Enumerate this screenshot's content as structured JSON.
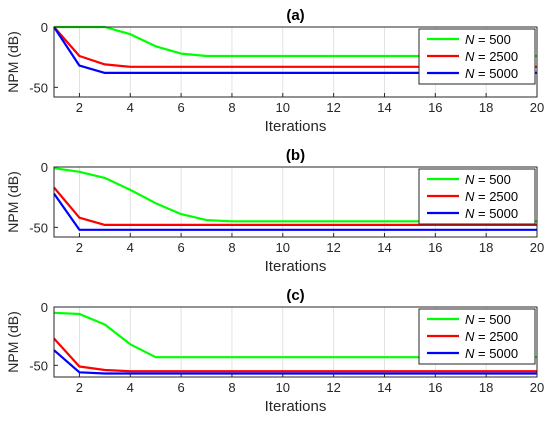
{
  "figure": {
    "colors": {
      "green": "#00ff00",
      "red": "#ff0000",
      "blue": "#0000ff"
    }
  },
  "chart_data": [
    {
      "type": "line",
      "title": "(a)",
      "xlabel": "Iterations",
      "ylabel": "NPM (dB)",
      "xlim": [
        1,
        20
      ],
      "ylim": [
        -58,
        0
      ],
      "xticks": [
        2,
        4,
        6,
        8,
        10,
        12,
        14,
        16,
        18,
        20
      ],
      "yticks": [
        0,
        -50
      ],
      "grid": "x",
      "legend": "top-right",
      "x": [
        1,
        2,
        3,
        4,
        5,
        6,
        7,
        8,
        9,
        10,
        11,
        12,
        13,
        14,
        15,
        16,
        17,
        18,
        19,
        20
      ],
      "series": [
        {
          "name_prefix": "N",
          "name_suffix": " = 500",
          "color": "#00ff00",
          "values": [
            0,
            0,
            0,
            -6,
            -16,
            -22,
            -24,
            -24,
            -24,
            -24,
            -24,
            -24,
            -24,
            -24,
            -24,
            -24,
            -24,
            -24,
            -24,
            -24
          ]
        },
        {
          "name_prefix": "N",
          "name_suffix": " = 2500",
          "color": "#ff0000",
          "values": [
            0,
            -24,
            -31,
            -33,
            -33,
            -33,
            -33,
            -33,
            -33,
            -33,
            -33,
            -33,
            -33,
            -33,
            -33,
            -33,
            -33,
            -33,
            -33,
            -33
          ]
        },
        {
          "name_prefix": "N",
          "name_suffix": " = 5000",
          "color": "#0000ff",
          "values": [
            0,
            -32,
            -38,
            -38,
            -38,
            -38,
            -38,
            -38,
            -38,
            -38,
            -38,
            -38,
            -38,
            -38,
            -38,
            -38,
            -38,
            -38,
            -38,
            -38
          ]
        }
      ]
    },
    {
      "type": "line",
      "title": "(b)",
      "xlabel": "Iterations",
      "ylabel": "NPM (dB)",
      "xlim": [
        1,
        20
      ],
      "ylim": [
        -58,
        0
      ],
      "xticks": [
        2,
        4,
        6,
        8,
        10,
        12,
        14,
        16,
        18,
        20
      ],
      "yticks": [
        0,
        -50
      ],
      "grid": "x",
      "legend": "top-right",
      "x": [
        1,
        2,
        3,
        4,
        5,
        6,
        7,
        8,
        9,
        10,
        11,
        12,
        13,
        14,
        15,
        16,
        17,
        18,
        19,
        20
      ],
      "series": [
        {
          "name_prefix": "N",
          "name_suffix": " = 500",
          "color": "#00ff00",
          "values": [
            -1,
            -4,
            -9,
            -19,
            -30,
            -39,
            -44,
            -45,
            -45,
            -45,
            -45,
            -45,
            -45,
            -45,
            -45,
            -45,
            -45,
            -45,
            -45,
            -45
          ]
        },
        {
          "name_prefix": "N",
          "name_suffix": " = 2500",
          "color": "#ff0000",
          "values": [
            -17,
            -42,
            -48,
            -48,
            -48,
            -48,
            -48,
            -48,
            -48,
            -48,
            -48,
            -48,
            -48,
            -48,
            -48,
            -48,
            -48,
            -48,
            -48,
            -48
          ]
        },
        {
          "name_prefix": "N",
          "name_suffix": " = 5000",
          "color": "#0000ff",
          "values": [
            -22,
            -52,
            -52,
            -52,
            -52,
            -52,
            -52,
            -52,
            -52,
            -52,
            -52,
            -52,
            -52,
            -52,
            -52,
            -52,
            -52,
            -52,
            -52,
            -52
          ]
        }
      ]
    },
    {
      "type": "line",
      "title": "(c)",
      "xlabel": "Iterations",
      "ylabel": "NPM (dB)",
      "xlim": [
        1,
        20
      ],
      "ylim": [
        -60,
        0
      ],
      "xticks": [
        2,
        4,
        6,
        8,
        10,
        12,
        14,
        16,
        18,
        20
      ],
      "yticks": [
        0,
        -50
      ],
      "grid": "x",
      "legend": "top-right",
      "x": [
        1,
        2,
        3,
        4,
        5,
        6,
        7,
        8,
        9,
        10,
        11,
        12,
        13,
        14,
        15,
        16,
        17,
        18,
        19,
        20
      ],
      "series": [
        {
          "name_prefix": "N",
          "name_suffix": " = 500",
          "color": "#00ff00",
          "values": [
            -5,
            -6,
            -15,
            -32,
            -43,
            -43,
            -43,
            -43,
            -43,
            -43,
            -43,
            -43,
            -43,
            -43,
            -43,
            -43,
            -43,
            -43,
            -43,
            -43
          ]
        },
        {
          "name_prefix": "N",
          "name_suffix": " = 2500",
          "color": "#ff0000",
          "values": [
            -27,
            -51,
            -54,
            -55,
            -55,
            -55,
            -55,
            -55,
            -55,
            -55,
            -55,
            -55,
            -55,
            -55,
            -55,
            -55,
            -55,
            -55,
            -55,
            -55
          ]
        },
        {
          "name_prefix": "N",
          "name_suffix": " = 5000",
          "color": "#0000ff",
          "values": [
            -37,
            -56,
            -57,
            -57,
            -57,
            -57,
            -57,
            -57,
            -57,
            -57,
            -57,
            -57,
            -57,
            -57,
            -57,
            -57,
            -57,
            -57,
            -57,
            -57
          ]
        }
      ]
    }
  ]
}
